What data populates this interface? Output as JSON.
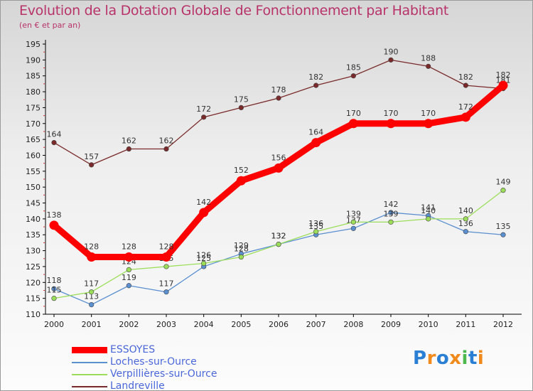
{
  "chart_data": {
    "type": "line",
    "title": "Evolution de la Dotation Globale de Fonctionnement par Habitant",
    "subtitle": "(en € et par an)",
    "x": [
      "2000",
      "2001",
      "2002",
      "2003",
      "2004",
      "2005",
      "2006",
      "2007",
      "2008",
      "2009",
      "2010",
      "2011",
      "2012"
    ],
    "ylim": [
      110,
      195
    ],
    "yticks": [
      "110",
      "115",
      "120",
      "125",
      "130",
      "135",
      "140",
      "145",
      "150",
      "155",
      "160",
      "165",
      "170",
      "175",
      "180",
      "185",
      "190",
      "195"
    ],
    "grid": false,
    "legend_position": "bottom-left",
    "series": [
      {
        "name": "Landreville",
        "color": "#7a2a2a",
        "values": [
          164,
          157,
          162,
          162,
          172,
          175,
          178,
          182,
          185,
          190,
          188,
          182,
          181
        ]
      },
      {
        "name": "Loches-sur-Ource",
        "color": "#5a8fd0",
        "values": [
          118,
          113,
          119,
          117,
          125,
          129,
          132,
          135,
          137,
          142,
          141,
          136,
          135
        ]
      },
      {
        "name": "Verpillières-sur-Ource",
        "color": "#9cde5a",
        "values": [
          115,
          117,
          124,
          125,
          126,
          128,
          132,
          136,
          139,
          139,
          140,
          140,
          149
        ]
      },
      {
        "name": "ESSOYES",
        "color": "#ff0000",
        "values": [
          138,
          128,
          128,
          128,
          142,
          152,
          156,
          164,
          170,
          170,
          170,
          172,
          182
        ]
      }
    ]
  },
  "legend": {
    "items": [
      {
        "name": "ESSOYES",
        "color": "#ff0000"
      },
      {
        "name": "Loches-sur-Ource",
        "color": "#5a8fd0"
      },
      {
        "name": "Verpillières-sur-Ource",
        "color": "#9cde5a"
      },
      {
        "name": "Landreville",
        "color": "#7a2a2a"
      }
    ]
  },
  "logo": {
    "text": "Proxiti",
    "letters": [
      {
        "ch": "P",
        "color": "#2a7fd4"
      },
      {
        "ch": "r",
        "color": "#f08a1c"
      },
      {
        "ch": "o",
        "color": "#2a7fd4"
      },
      {
        "ch": "x",
        "color": "#f08a1c"
      },
      {
        "ch": "i",
        "color": "#4db84d"
      },
      {
        "ch": "t",
        "color": "#2a7fd4"
      },
      {
        "ch": "i",
        "color": "#f08a1c"
      }
    ]
  }
}
